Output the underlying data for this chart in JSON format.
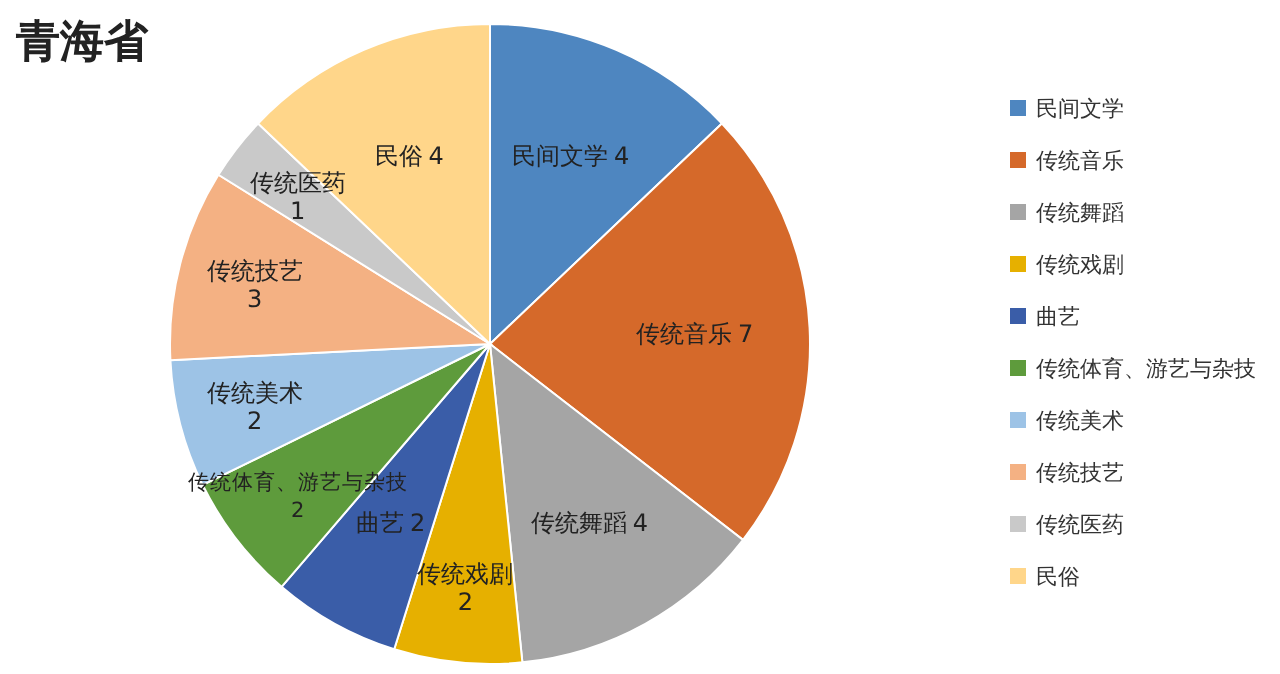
{
  "chart_data": {
    "type": "pie",
    "title": "青海省",
    "categories": [
      "民间文学",
      "传统音乐",
      "传统舞蹈",
      "传统戏剧",
      "曲艺",
      "传统体育、游艺与杂技",
      "传统美术",
      "传统技艺",
      "传统医药",
      "民俗"
    ],
    "values": [
      4,
      7,
      4,
      2,
      2,
      2,
      2,
      3,
      1,
      4
    ],
    "colors": [
      "#4e86c0",
      "#d5692a",
      "#a5a5a5",
      "#e6b000",
      "#3a5da8",
      "#5e9b3c",
      "#9dc3e6",
      "#f4b183",
      "#c9c9c9",
      "#ffd68a"
    ],
    "data_labels": true,
    "legend": "right"
  }
}
